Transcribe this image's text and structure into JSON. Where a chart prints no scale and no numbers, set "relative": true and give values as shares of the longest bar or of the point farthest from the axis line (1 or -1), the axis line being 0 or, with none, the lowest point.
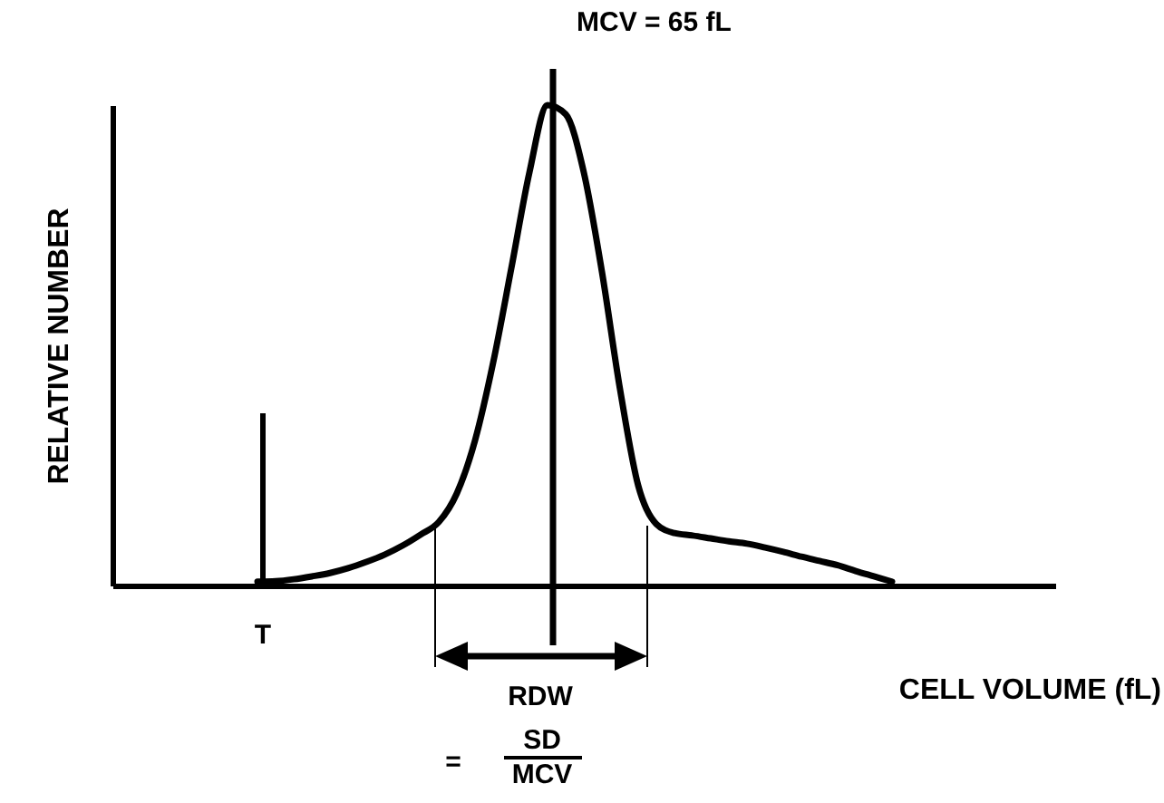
{
  "chart_data": {
    "type": "line",
    "relative": true,
    "xlabel": "CELL VOLUME (fL)",
    "ylabel": "RELATIVE NUMBER",
    "annotations": [
      "MCV = 65 fL",
      "T",
      "RDW",
      "=",
      "SD",
      "MCV"
    ],
    "categories": [
      null,
      null,
      null,
      null,
      null,
      null,
      null,
      null,
      null,
      null,
      null,
      null,
      null,
      null,
      null,
      null,
      null,
      null,
      null,
      null,
      null,
      null,
      null,
      null,
      null,
      null,
      null,
      null,
      null,
      null,
      null,
      null,
      null,
      null,
      null,
      null,
      null,
      null,
      null,
      null,
      null,
      null,
      null,
      null,
      null,
      null,
      null,
      null,
      null,
      null,
      null,
      null,
      null
    ],
    "series": [
      {
        "color": "#000000",
        "values": [
          null,
          null,
          null,
          null,
          null,
          null,
          null,
          null,
          0.008,
          0.009,
          0.013,
          0.019,
          0.026,
          0.036,
          0.049,
          0.064,
          0.083,
          0.106,
          0.132,
          0.192,
          0.302,
          0.464,
          0.66,
          0.86,
          1,
          0.981,
          0.86,
          0.653,
          0.408,
          0.208,
          0.128,
          0.109,
          0.104,
          0.098,
          0.092,
          0.087,
          0.079,
          0.07,
          0.06,
          0.051,
          0.042,
          0.03,
          0.019,
          0.008,
          null,
          null,
          null,
          null,
          null,
          null,
          null,
          null,
          null
        ]
      }
    ],
    "marker": "none",
    "line_style": "solid",
    "grid": false
  }
}
